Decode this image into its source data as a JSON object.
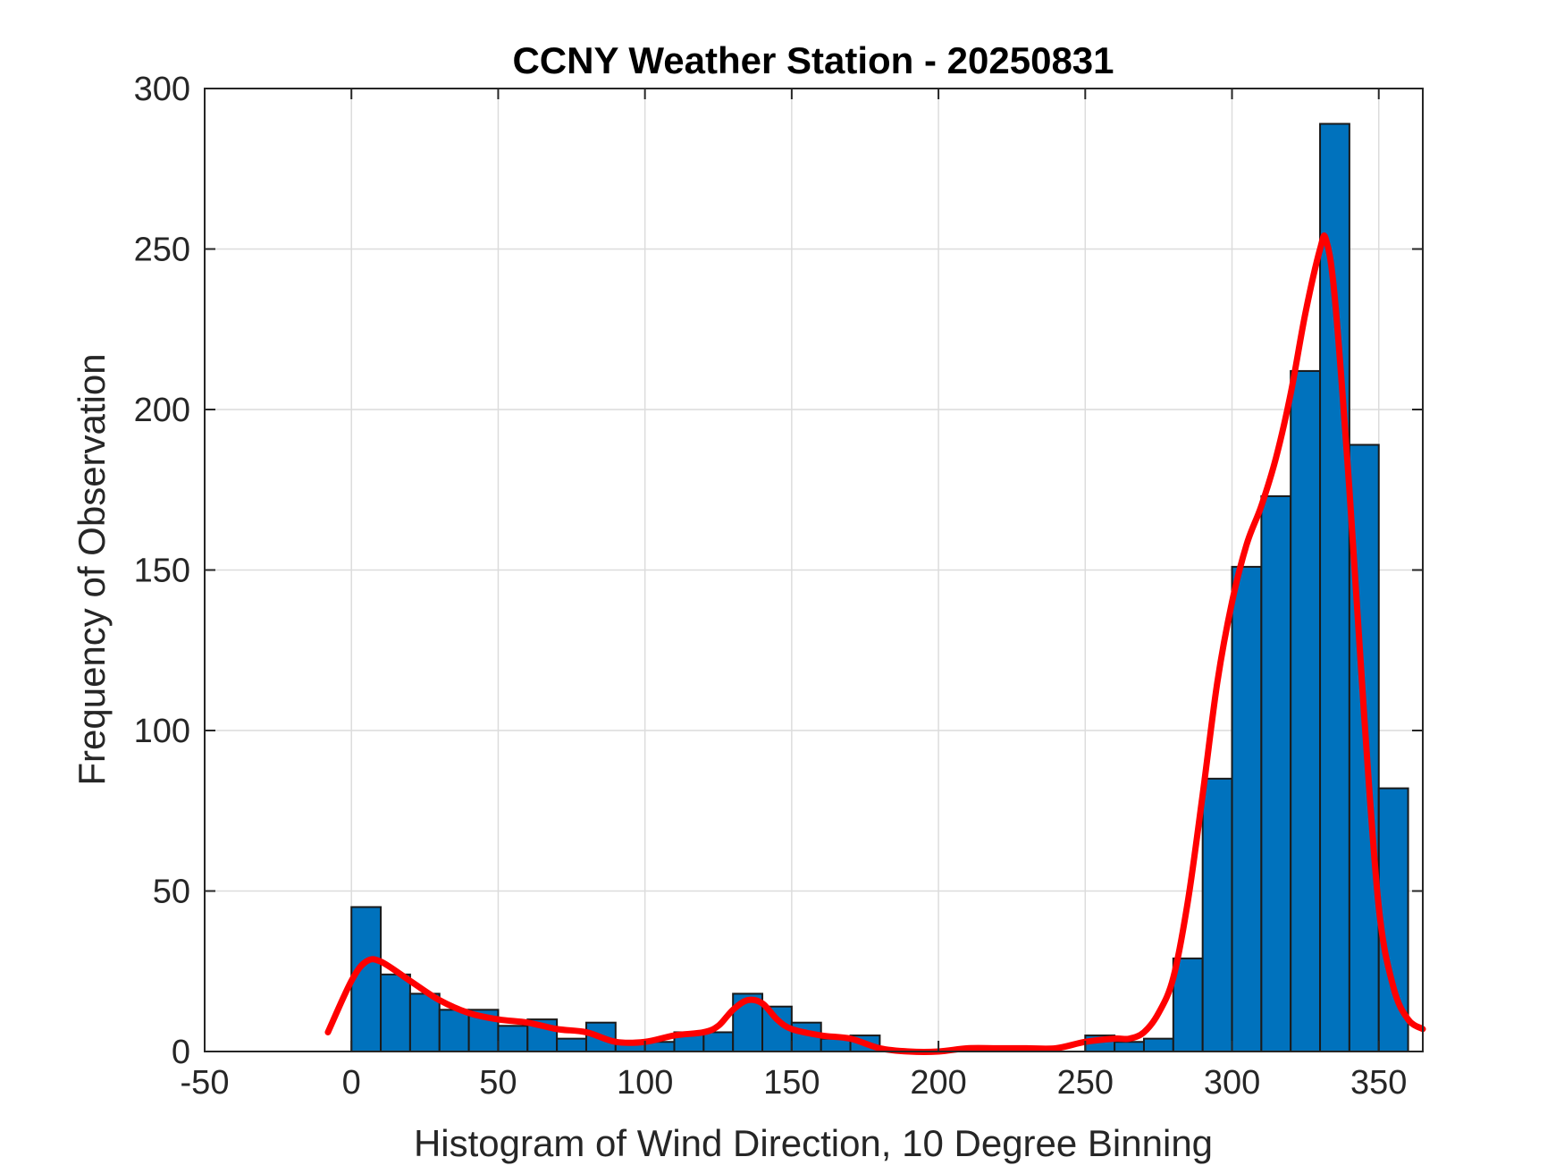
{
  "chart_data": {
    "type": "bar",
    "title": "CCNY Weather Station - 20250831",
    "xlabel": "Histogram of Wind Direction, 10 Degree Binning",
    "ylabel": "Frequency of Observation",
    "xlim": [
      -50,
      365
    ],
    "ylim": [
      0,
      300
    ],
    "xticks": [
      "-50",
      "0",
      "50",
      "100",
      "150",
      "200",
      "250",
      "300",
      "350"
    ],
    "yticks": [
      "0",
      "50",
      "100",
      "150",
      "200",
      "250",
      "300"
    ],
    "grid": true,
    "bin_width": 10,
    "bin_edges": [
      0,
      10,
      20,
      30,
      40,
      50,
      60,
      70,
      80,
      90,
      100,
      110,
      120,
      130,
      140,
      150,
      160,
      170,
      180,
      190,
      200,
      210,
      220,
      230,
      240,
      250,
      260,
      270,
      280,
      290,
      300,
      310,
      320,
      330,
      340,
      350,
      360
    ],
    "series": [
      {
        "type": "histogram",
        "color": "#0072BD",
        "values": [
          45,
          24,
          18,
          13,
          13,
          8,
          10,
          4,
          9,
          3,
          3,
          6,
          6,
          18,
          14,
          9,
          4,
          5,
          0,
          0,
          0,
          1,
          0,
          1,
          0,
          5,
          3,
          4,
          29,
          85,
          151,
          173,
          212,
          289,
          189,
          82
        ]
      },
      {
        "type": "line",
        "color": "#FF0000",
        "x": [
          -8,
          0,
          5,
          10,
          20,
          30,
          40,
          50,
          60,
          70,
          80,
          90,
          100,
          110,
          120,
          125,
          130,
          135,
          140,
          145,
          150,
          160,
          170,
          180,
          190,
          200,
          210,
          220,
          230,
          240,
          250,
          260,
          265,
          270,
          275,
          280,
          285,
          290,
          295,
          300,
          305,
          310,
          315,
          320,
          325,
          330,
          332,
          335,
          340,
          345,
          350,
          355,
          360,
          365
        ],
        "y": [
          6,
          22,
          28,
          28,
          22,
          16,
          12,
          10,
          9,
          7,
          6,
          3,
          3,
          5,
          6,
          8,
          13,
          16,
          15,
          10,
          7,
          5,
          4,
          1,
          0,
          0,
          1,
          1,
          1,
          1,
          3,
          4,
          4,
          6,
          12,
          23,
          47,
          80,
          115,
          140,
          158,
          170,
          185,
          205,
          230,
          250,
          253,
          235,
          175,
          105,
          45,
          20,
          10,
          7
        ]
      }
    ]
  }
}
